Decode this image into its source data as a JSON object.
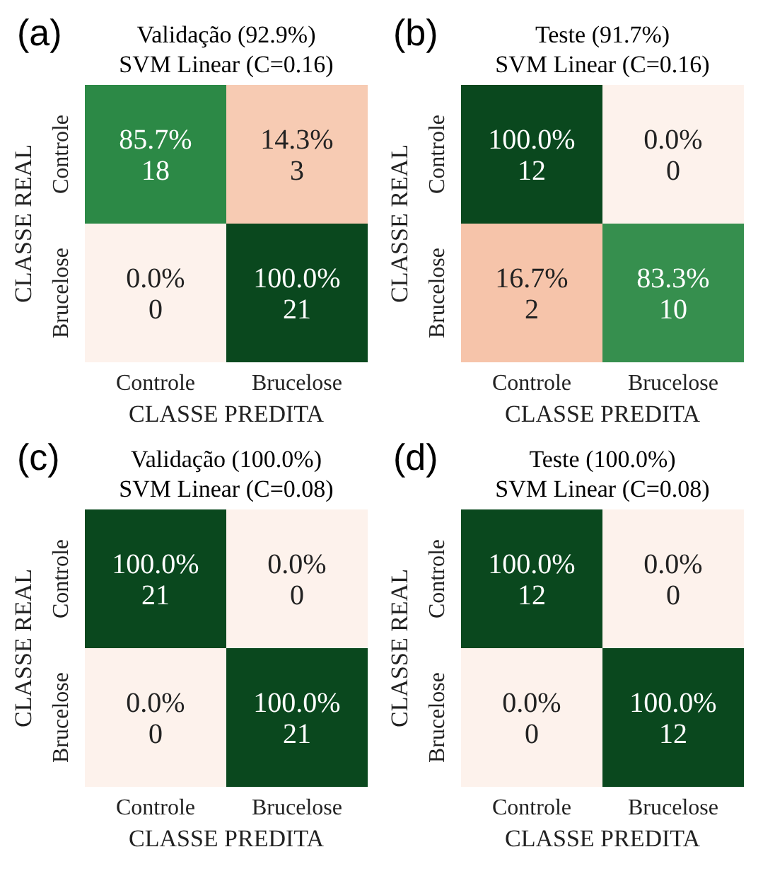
{
  "chart_data": [
    {
      "type": "heatmap",
      "title": "Validação (92.9%)",
      "subtitle": "SVM Linear (C=0.16)",
      "xlabel": "CLASSE PREDITA",
      "ylabel": "CLASSE REAL",
      "categories": [
        "Controle",
        "Brucelose"
      ],
      "y_categories": [
        "Controle",
        "Brucelose"
      ],
      "cells": [
        [
          85.7,
          14.3
        ],
        [
          0.0,
          100.0
        ]
      ],
      "cell_labels": [
        [
          "85.7%",
          "14.3%"
        ],
        [
          "0.0%",
          "100.0%"
        ]
      ],
      "annotations": [
        "(a)",
        "18",
        "3",
        "0",
        "21"
      ]
    },
    {
      "type": "heatmap",
      "title": "Teste (91.7%)",
      "subtitle": "SVM Linear (C=0.16)",
      "xlabel": "CLASSE PREDITA",
      "ylabel": "CLASSE REAL",
      "categories": [
        "Controle",
        "Brucelose"
      ],
      "y_categories": [
        "Controle",
        "Brucelose"
      ],
      "cells": [
        [
          100.0,
          0.0
        ],
        [
          16.7,
          83.3
        ]
      ],
      "cell_labels": [
        [
          "100.0%",
          "0.0%"
        ],
        [
          "16.7%",
          "83.3%"
        ]
      ],
      "annotations": [
        "(b)",
        "12",
        "0",
        "2",
        "10"
      ]
    },
    {
      "type": "heatmap",
      "title": "Validação (100.0%)",
      "subtitle": "SVM Linear (C=0.08)",
      "xlabel": "CLASSE PREDITA",
      "ylabel": "CLASSE REAL",
      "categories": [
        "Controle",
        "Brucelose"
      ],
      "y_categories": [
        "Controle",
        "Brucelose"
      ],
      "cells": [
        [
          100.0,
          0.0
        ],
        [
          0.0,
          100.0
        ]
      ],
      "cell_labels": [
        [
          "100.0%",
          "0.0%"
        ],
        [
          "0.0%",
          "100.0%"
        ]
      ],
      "annotations": [
        "(c)",
        "21",
        "0",
        "0",
        "21"
      ]
    },
    {
      "type": "heatmap",
      "title": "Teste (100.0%)",
      "subtitle": "SVM Linear (C=0.08)",
      "xlabel": "CLASSE PREDITA",
      "ylabel": "CLASSE REAL",
      "categories": [
        "Controle",
        "Brucelose"
      ],
      "y_categories": [
        "Controle",
        "Brucelose"
      ],
      "cells": [
        [
          100.0,
          0.0
        ],
        [
          0.0,
          100.0
        ]
      ],
      "cell_labels": [
        [
          "100.0%",
          "0.0%"
        ],
        [
          "0.0%",
          "100.0%"
        ]
      ],
      "annotations": [
        "(d)",
        "12",
        "0",
        "0",
        "12"
      ]
    }
  ]
}
